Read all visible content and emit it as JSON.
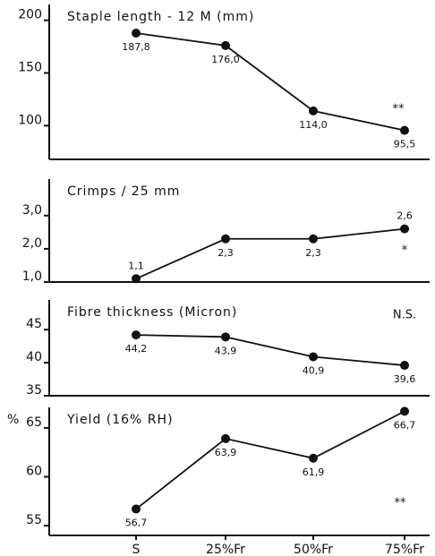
{
  "chart_data": [
    {
      "type": "line",
      "title": "Staple length - 12 M (mm)",
      "values": [
        187.8,
        176.0,
        114.0,
        95.5
      ],
      "value_labels": [
        "187,8",
        "176,0",
        "114,0",
        "95,5"
      ],
      "ylim": [
        68,
        215
      ],
      "yticks": [
        100,
        150,
        200
      ],
      "annotation": "**",
      "color": "#111111"
    },
    {
      "type": "line",
      "title": "Crimps / 25 mm",
      "values": [
        1.1,
        2.3,
        2.3,
        2.6
      ],
      "value_labels": [
        "1,1",
        "2,3",
        "2,3",
        "2,6"
      ],
      "ylim": [
        1.0,
        4.1
      ],
      "yticks": [
        {
          "value": 1.0,
          "label": "1,0"
        },
        {
          "value": 2.0,
          "label": "2,0"
        },
        {
          "value": 3.0,
          "label": "3,0"
        }
      ],
      "annotation": "*",
      "color": "#111111"
    },
    {
      "type": "line",
      "title": "Fibre thickness (Micron)",
      "values": [
        44.2,
        43.9,
        40.9,
        39.6
      ],
      "value_labels": [
        "44,2",
        "43,9",
        "40,9",
        "39,6"
      ],
      "ylim": [
        35,
        49.5
      ],
      "yticks": [
        35,
        40,
        45
      ],
      "annotation": "N.S.",
      "color": "#111111"
    },
    {
      "type": "line",
      "title": "Yield (16% RH)",
      "ylabel": "%",
      "categories": [
        "S",
        "25%Fr",
        "50%Fr",
        "75%Fr"
      ],
      "values": [
        56.7,
        63.9,
        61.9,
        66.7
      ],
      "value_labels": [
        "56,7",
        "63,9",
        "61,9",
        "66,7"
      ],
      "ylim": [
        54,
        67.1
      ],
      "yticks": [
        55,
        60,
        65
      ],
      "annotation": "**",
      "color": "#111111"
    }
  ]
}
